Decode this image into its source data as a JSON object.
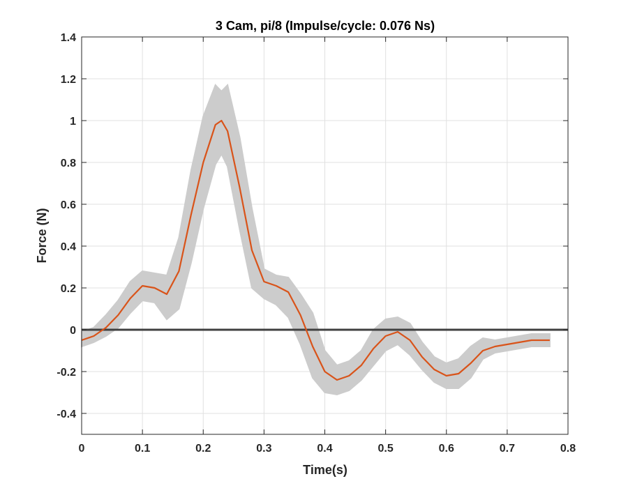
{
  "chart_data": {
    "type": "line",
    "title": "3 Cam, pi/8 (Impulse/cycle: 0.076 Ns)",
    "xlabel": "Time(s)",
    "ylabel": "Force (N)",
    "xlim": [
      0,
      0.8
    ],
    "ylim": [
      -0.5,
      1.4
    ],
    "xticks": [
      0,
      0.1,
      0.2,
      0.3,
      0.4,
      0.5,
      0.6,
      0.7,
      0.8
    ],
    "yticks": [
      -0.4,
      -0.2,
      0,
      0.2,
      0.4,
      0.6,
      0.8,
      1,
      1.2,
      1.4
    ],
    "xtick_labels": [
      "0",
      "0.1",
      "0.2",
      "0.3",
      "0.4",
      "0.5",
      "0.6",
      "0.7",
      "0.8"
    ],
    "ytick_labels": [
      "-0.4",
      "-0.2",
      "0",
      "0.2",
      "0.4",
      "0.6",
      "0.8",
      "1",
      "1.2",
      "1.4"
    ],
    "grid": true,
    "colors": {
      "mean": "#d95319",
      "band": "#cccccc",
      "zero": "#404040",
      "grid": "#e0e0e0"
    },
    "series": [
      {
        "role": "mean",
        "x": [
          0,
          0.02,
          0.04,
          0.06,
          0.08,
          0.1,
          0.12,
          0.14,
          0.16,
          0.18,
          0.2,
          0.22,
          0.23,
          0.24,
          0.26,
          0.28,
          0.3,
          0.32,
          0.34,
          0.36,
          0.38,
          0.4,
          0.42,
          0.44,
          0.46,
          0.48,
          0.5,
          0.52,
          0.54,
          0.56,
          0.58,
          0.6,
          0.62,
          0.64,
          0.66,
          0.68,
          0.7,
          0.72,
          0.74,
          0.77
        ],
        "y": [
          -0.05,
          -0.03,
          0.01,
          0.07,
          0.15,
          0.21,
          0.2,
          0.17,
          0.28,
          0.55,
          0.8,
          0.98,
          1.0,
          0.95,
          0.68,
          0.38,
          0.23,
          0.21,
          0.18,
          0.07,
          -0.08,
          -0.2,
          -0.24,
          -0.22,
          -0.17,
          -0.09,
          -0.03,
          -0.01,
          -0.05,
          -0.13,
          -0.19,
          -0.22,
          -0.21,
          -0.16,
          -0.1,
          -0.08,
          -0.07,
          -0.06,
          -0.05,
          -0.05
        ]
      },
      {
        "role": "band",
        "x": [
          0,
          0.02,
          0.04,
          0.06,
          0.08,
          0.1,
          0.12,
          0.14,
          0.16,
          0.18,
          0.2,
          0.22,
          0.23,
          0.24,
          0.26,
          0.28,
          0.3,
          0.32,
          0.34,
          0.36,
          0.38,
          0.4,
          0.42,
          0.44,
          0.46,
          0.48,
          0.5,
          0.52,
          0.54,
          0.56,
          0.58,
          0.6,
          0.62,
          0.64,
          0.66,
          0.68,
          0.7,
          0.72,
          0.74,
          0.77
        ],
        "lower": [
          -0.08,
          -0.06,
          -0.03,
          0.01,
          0.08,
          0.14,
          0.13,
          0.05,
          0.1,
          0.32,
          0.58,
          0.79,
          0.84,
          0.78,
          0.48,
          0.2,
          0.15,
          0.12,
          0.06,
          -0.07,
          -0.23,
          -0.3,
          -0.31,
          -0.29,
          -0.24,
          -0.17,
          -0.1,
          -0.07,
          -0.12,
          -0.19,
          -0.25,
          -0.28,
          -0.28,
          -0.23,
          -0.14,
          -0.11,
          -0.1,
          -0.09,
          -0.08,
          -0.08
        ]
      },
      {
        "role": "band-upper",
        "x": [
          0,
          0.02,
          0.04,
          0.06,
          0.08,
          0.1,
          0.12,
          0.14,
          0.16,
          0.18,
          0.2,
          0.22,
          0.23,
          0.24,
          0.26,
          0.28,
          0.3,
          0.32,
          0.34,
          0.36,
          0.38,
          0.4,
          0.42,
          0.44,
          0.46,
          0.48,
          0.5,
          0.52,
          0.54,
          0.56,
          0.58,
          0.6,
          0.62,
          0.64,
          0.66,
          0.68,
          0.7,
          0.72,
          0.74,
          0.77
        ],
        "upper": [
          -0.01,
          0.01,
          0.07,
          0.14,
          0.23,
          0.28,
          0.27,
          0.26,
          0.44,
          0.76,
          1.02,
          1.17,
          1.14,
          1.17,
          0.92,
          0.58,
          0.29,
          0.26,
          0.25,
          0.17,
          0.08,
          -0.1,
          -0.17,
          -0.15,
          -0.1,
          0.0,
          0.05,
          0.06,
          0.03,
          -0.06,
          -0.13,
          -0.16,
          -0.14,
          -0.08,
          -0.04,
          -0.05,
          -0.04,
          -0.03,
          -0.02,
          -0.02
        ]
      },
      {
        "role": "zero-line",
        "x": [
          0,
          0.8
        ],
        "y": [
          0,
          0
        ]
      }
    ]
  }
}
